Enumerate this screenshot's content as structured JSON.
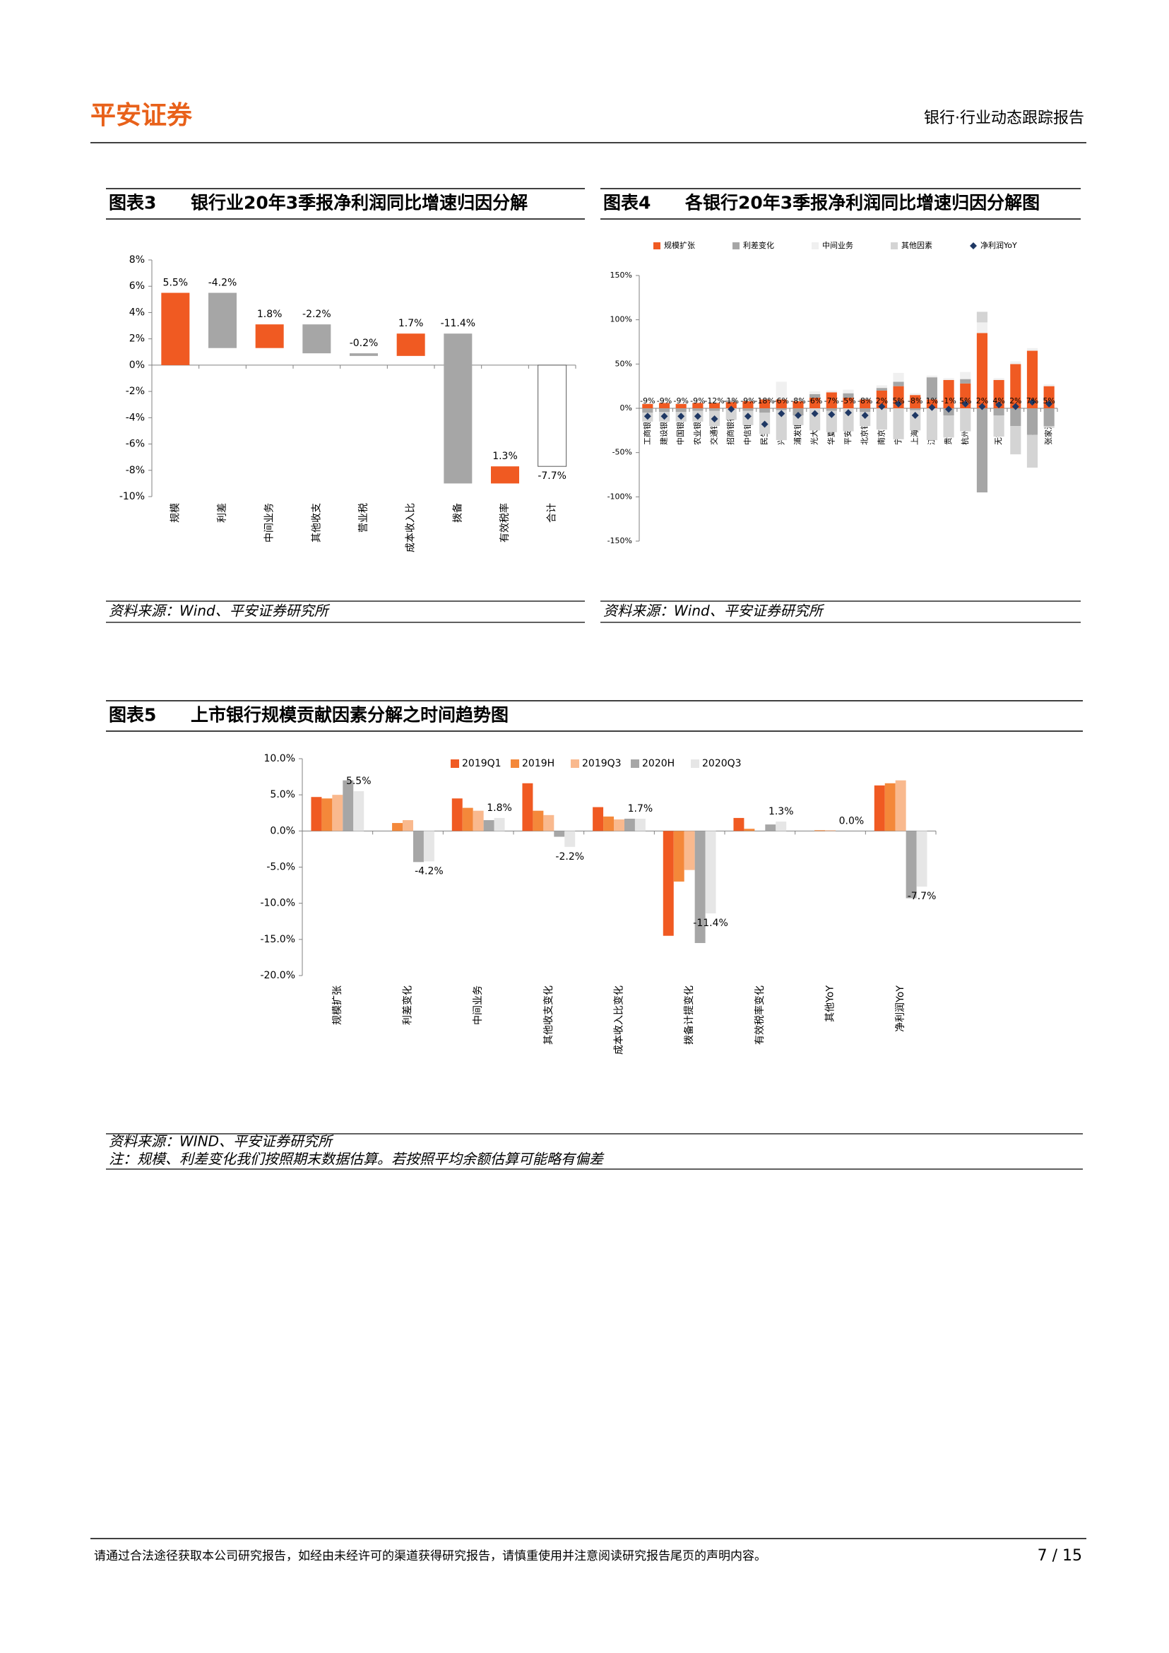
{
  "header": {
    "logo": "平安证券",
    "report": "银行·行业动态跟踪报告"
  },
  "chart_data": [
    {
      "type": "waterfall",
      "label": "图表3",
      "title": "银行业20年3季报净利润同比增速归因分解",
      "categories": [
        "规模",
        "利差",
        "中间业务",
        "其他收支",
        "营业税",
        "成本收入比",
        "拨备",
        "有效税率",
        "合计"
      ],
      "values": [
        5.5,
        -4.2,
        1.8,
        -2.2,
        -0.2,
        1.7,
        -11.4,
        1.3,
        -7.7
      ],
      "value_labels": [
        "5.5%",
        "-4.2%",
        "1.8%",
        "-2.2%",
        "-0.2%",
        "1.7%",
        "-11.4%",
        "1.3%",
        "-7.7%"
      ],
      "last_is_total": true,
      "up_color": "#f05a22",
      "down_color": "#a6a6a6",
      "total_color": "#ffffff",
      "ylim": [
        -10,
        8
      ],
      "yticks": [
        {
          "value": -10,
          "label": "-10%"
        },
        {
          "value": -8,
          "label": "-8%"
        },
        {
          "value": -6,
          "label": "-6%"
        },
        {
          "value": -4,
          "label": "-4%"
        },
        {
          "value": -2,
          "label": "-2%"
        },
        {
          "value": 0,
          "label": "0%"
        },
        {
          "value": 2,
          "label": "2%"
        },
        {
          "value": 4,
          "label": "4%"
        },
        {
          "value": 6,
          "label": "6%"
        },
        {
          "value": 8,
          "label": "8%"
        }
      ],
      "source": "资料来源：Wind、平安证券研究所"
    },
    {
      "type": "stacked_bar",
      "label": "图表4",
      "title": "各银行20年3季报净利润同比增速归因分解图",
      "categories": [
        "工商银行",
        "建设银行",
        "中国银行",
        "农业银行",
        "交通银行",
        "招商银行",
        "中信银行",
        "民生银行",
        "兴业银行",
        "浦发银行",
        "光大银行",
        "华夏银行",
        "平安银行",
        "北京银行",
        "南京银行",
        "宁波银行",
        "上海银行",
        "江苏银行",
        "贵阳银行",
        "杭州银行",
        "江阴银行",
        "无锡银行",
        "常熟银行",
        "吴江银行",
        "张家港行"
      ],
      "series": [
        {
          "name": "规模扩张",
          "color": "#f05a22",
          "values": [
            5,
            6,
            5,
            6,
            6,
            7,
            8,
            10,
            10,
            8,
            12,
            18,
            12,
            10,
            20,
            25,
            15,
            10,
            32,
            28,
            85,
            32,
            50,
            65,
            25
          ]
        },
        {
          "name": "利差变化",
          "color": "#a6a6a6",
          "values": [
            -5,
            -4,
            -4,
            -3,
            -3,
            2,
            -3,
            -5,
            -2,
            -8,
            4,
            -3,
            5,
            -4,
            3,
            5,
            -2,
            25,
            -8,
            5,
            -95,
            -8,
            -20,
            -30,
            -20
          ]
        },
        {
          "name": "中间业务",
          "color": "#f0f0f0",
          "values": [
            1,
            1,
            1,
            1,
            2,
            3,
            2,
            1,
            20,
            3,
            3,
            2,
            4,
            2,
            3,
            10,
            2,
            2,
            2,
            8,
            12,
            2,
            3,
            3,
            2
          ]
        },
        {
          "name": "其他因素",
          "color": "#d4d4d4",
          "values": [
            -10,
            -11,
            -11,
            -12,
            -17,
            -13,
            -16,
            -24,
            -34,
            -11,
            -25,
            -24,
            -26,
            -16,
            -24,
            -35,
            -23,
            -36,
            -25,
            -26,
            12,
            -24,
            -32,
            -37,
            -2
          ]
        },
        {
          "name": "净利润YoY",
          "color": "#1f3864",
          "marker": "diamond",
          "values": [
            -9,
            -9,
            -9,
            -9,
            -12,
            -1,
            -9,
            -18,
            -6,
            -8,
            -6,
            -7,
            -5,
            -8,
            2,
            5,
            -8,
            1,
            -1,
            5,
            2,
            4,
            2,
            7,
            5
          ],
          "value_labels": [
            "-9%",
            "-9%",
            "-9%",
            "-9%",
            "-12%",
            "-1%",
            "-9%",
            "-18%",
            "-6%",
            "-8%",
            "-6%",
            "-7%",
            "-5%",
            "-8%",
            "2%",
            "5%",
            "-8%",
            "1%",
            "-1%",
            "5%",
            "2%",
            "4%",
            "2%",
            "7%",
            "5%"
          ]
        }
      ],
      "ylim": [
        -150,
        150
      ],
      "yticks": [
        {
          "value": -150,
          "label": "-150%"
        },
        {
          "value": -100,
          "label": "-100%"
        },
        {
          "value": -50,
          "label": "-50%"
        },
        {
          "value": 0,
          "label": "0%"
        },
        {
          "value": 50,
          "label": "50%"
        },
        {
          "value": 100,
          "label": "100%"
        },
        {
          "value": 150,
          "label": "150%"
        }
      ],
      "source": "资料来源：Wind、平安证券研究所"
    },
    {
      "type": "grouped_bar",
      "label": "图表5",
      "title": "上市银行规模贡献因素分解之时间趋势图",
      "categories": [
        "规模扩张",
        "利差变化",
        "中间业务",
        "其他收支变化",
        "成本收入比变化",
        "拨备计提变化",
        "有效税率变化",
        "其他YoY",
        "净利润YoY"
      ],
      "series": [
        {
          "name": "2019Q1",
          "color": "#f05a22",
          "values": [
            4.7,
            0,
            4.5,
            6.6,
            3.3,
            -14.5,
            1.8,
            0,
            6.3
          ]
        },
        {
          "name": "2019H",
          "color": "#f4883a",
          "values": [
            4.5,
            1.1,
            3.2,
            2.8,
            2.0,
            -7.0,
            0.3,
            0.1,
            6.6
          ]
        },
        {
          "name": "2019Q3",
          "color": "#f9b98e",
          "values": [
            5.0,
            1.5,
            2.8,
            2.2,
            1.6,
            -5.4,
            0.0,
            0.1,
            7.0
          ]
        },
        {
          "name": "2020H",
          "color": "#a6a6a6",
          "values": [
            7.0,
            -4.3,
            1.5,
            -0.8,
            1.7,
            -15.5,
            0.9,
            0,
            -9.3
          ]
        },
        {
          "name": "2020Q3",
          "color": "#e6e6e6",
          "values": [
            5.5,
            -4.2,
            1.8,
            -2.2,
            1.7,
            -11.4,
            1.3,
            0.0,
            -7.7
          ],
          "value_labels": [
            "5.5%",
            "-4.2%",
            "1.8%",
            "-2.2%",
            "1.7%",
            "-11.4%",
            "1.3%",
            "0.0%",
            "-7.7%"
          ]
        }
      ],
      "ylim": [
        -20,
        10
      ],
      "yticks": [
        {
          "value": -20,
          "label": "-20.0%"
        },
        {
          "value": -15,
          "label": "-15.0%"
        },
        {
          "value": -10,
          "label": "-10.0%"
        },
        {
          "value": -5,
          "label": "-5.0%"
        },
        {
          "value": 0,
          "label": "0.0%"
        },
        {
          "value": 5,
          "label": "5.0%"
        },
        {
          "value": 10,
          "label": "10.0%"
        }
      ],
      "source": "资料来源：WIND、平安证券研究所",
      "note": "注：规模、利差变化我们按照期末数据估算。若按照平均余额估算可能略有偏差"
    }
  ],
  "footer": {
    "disclaimer": "请通过合法途径获取本公司研究报告，如经由未经许可的渠道获得研究报告，请慎重使用并注意阅读研究报告尾页的声明内容。",
    "page": "7 / 15"
  }
}
